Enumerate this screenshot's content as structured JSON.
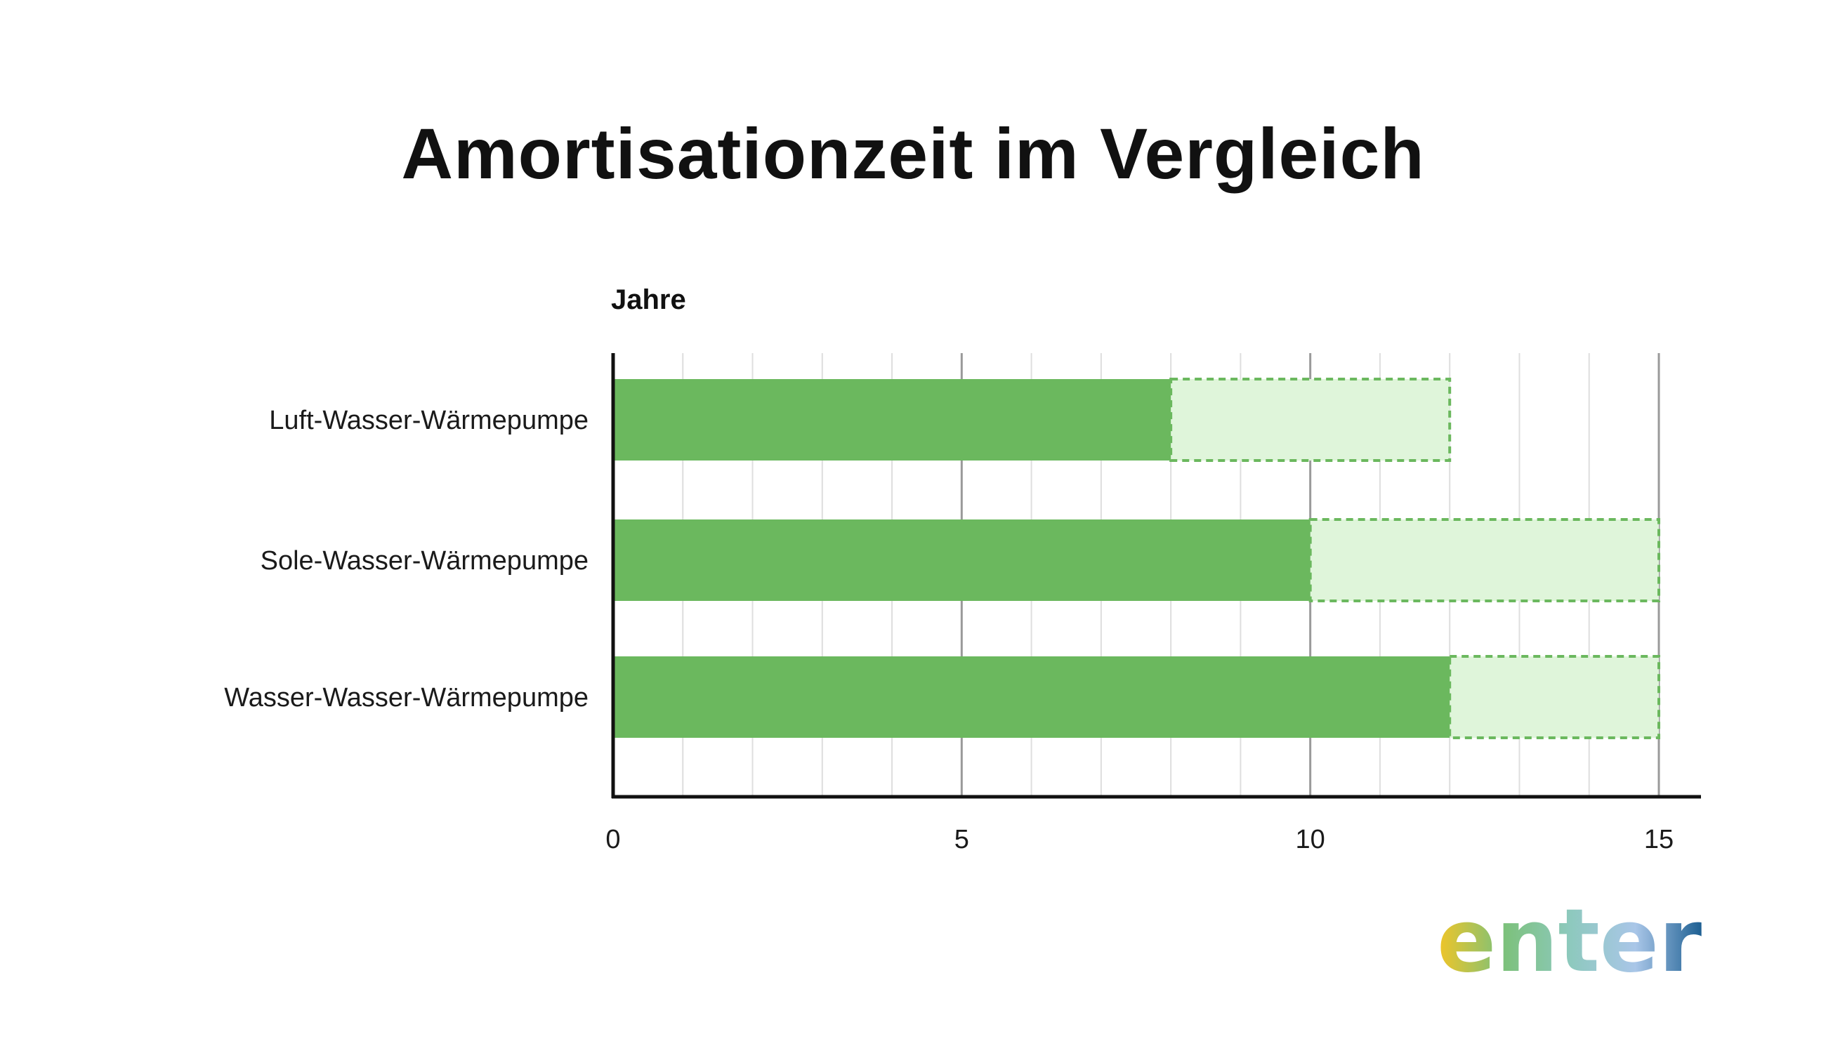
{
  "chart_data": {
    "type": "bar",
    "orientation": "horizontal",
    "stacked": true,
    "title": "Amortisationzeit im Vergleich",
    "unit_label": "Jahre",
    "categories": [
      "Luft-Wasser-Wärmepumpe",
      "Sole-Wasser-Wärmepumpe",
      "Wasser-Wasser-Wärmepumpe"
    ],
    "series": [
      {
        "values": [
          8,
          10,
          12
        ],
        "color": "#6bb85e",
        "style": "solid"
      },
      {
        "values": [
          4,
          5,
          3
        ],
        "color": "#dff5da",
        "border_color": "#6bb85e",
        "style": "dashed"
      }
    ],
    "xlim": [
      0,
      15
    ],
    "xticks": [
      0,
      5,
      10,
      15
    ],
    "minor_step": 1,
    "grid": true
  },
  "logo": {
    "text": "enter",
    "colors": [
      "#f2c526",
      "#7cc17a",
      "#8dc9bd",
      "#a9c6e8",
      "#1d5f92"
    ]
  }
}
